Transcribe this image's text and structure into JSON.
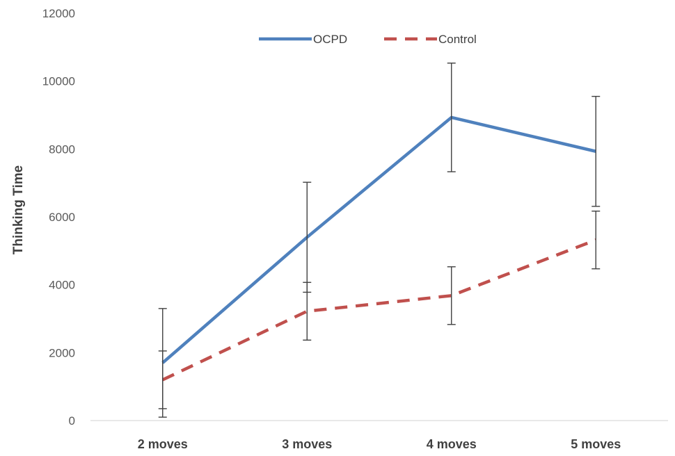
{
  "chart_data": {
    "type": "line",
    "title": "",
    "xlabel": "",
    "ylabel": "Thinking Time",
    "ylim": [
      0,
      12000
    ],
    "yticks": [
      0,
      2000,
      4000,
      6000,
      8000,
      10000,
      12000
    ],
    "categories": [
      "2 moves",
      "3 moves",
      "4 moves",
      "5 moves"
    ],
    "grid": false,
    "legend_position": "top-center",
    "series": [
      {
        "name": "OCPD",
        "color": "#4F81BD",
        "style": "solid",
        "values": [
          1700,
          5400,
          8930,
          7930
        ],
        "error": [
          1600,
          1620,
          1600,
          1620
        ]
      },
      {
        "name": "Control",
        "color": "#C0504D",
        "style": "dashed",
        "values": [
          1200,
          3220,
          3680,
          5320
        ],
        "error": [
          850,
          850,
          850,
          850
        ]
      }
    ]
  }
}
